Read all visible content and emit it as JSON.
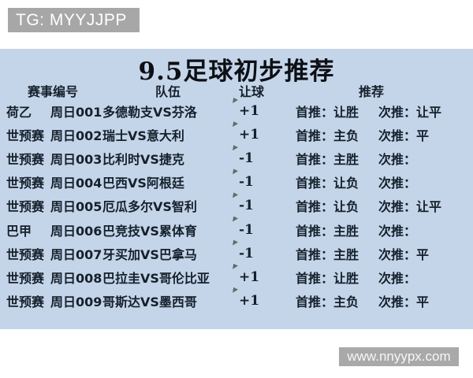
{
  "badge": {
    "text": "TG: MYYJJPP"
  },
  "title": "9.5足球初步推荐",
  "table": {
    "headers": {
      "match_no": "赛事编号",
      "teams": "队伍",
      "handicap": "让球",
      "recommend": "推荐"
    },
    "first_label": "首推：",
    "second_label": "次推：",
    "rows": [
      {
        "league": "荷乙",
        "no": "周日001",
        "teams": "多德勒支VS芬洛",
        "handicap": "+1",
        "first": "让胜",
        "second": "让平"
      },
      {
        "league": "世预赛",
        "no": "周日002",
        "teams": "瑞士VS意大利",
        "handicap": "+1",
        "first": "主负",
        "second": "平"
      },
      {
        "league": "世预赛",
        "no": "周日003",
        "teams": "比利时VS捷克",
        "handicap": "-1",
        "first": "主胜",
        "second": ""
      },
      {
        "league": "世预赛",
        "no": "周日004",
        "teams": "巴西VS阿根廷",
        "handicap": "-1",
        "first": "让负",
        "second": ""
      },
      {
        "league": "世预赛",
        "no": "周日005",
        "teams": "厄瓜多尔VS智利",
        "handicap": "-1",
        "first": "让负",
        "second": "让平"
      },
      {
        "league": "巴甲",
        "no": "周日006",
        "teams": "巴竞技VS累体育",
        "handicap": "-1",
        "first": "主胜",
        "second": ""
      },
      {
        "league": "世预赛",
        "no": "周日007",
        "teams": "牙买加VS巴拿马",
        "handicap": "-1",
        "first": "主胜",
        "second": "平"
      },
      {
        "league": "世预赛",
        "no": "周日008",
        "teams": "巴拉圭VS哥伦比亚",
        "handicap": "+1",
        "first": "让胜",
        "second": ""
      },
      {
        "league": "世预赛",
        "no": "周日009",
        "teams": "哥斯达VS墨西哥",
        "handicap": "+1",
        "first": "主负",
        "second": "平"
      }
    ]
  },
  "watermark": "www.nnyypx.com",
  "colors": {
    "panel_bg": "#c5d5e9",
    "badge_bg": "#a7a7a7",
    "watermark_bg": "#a9a9a9",
    "text": "#15202c",
    "tick": "#3f6150"
  }
}
